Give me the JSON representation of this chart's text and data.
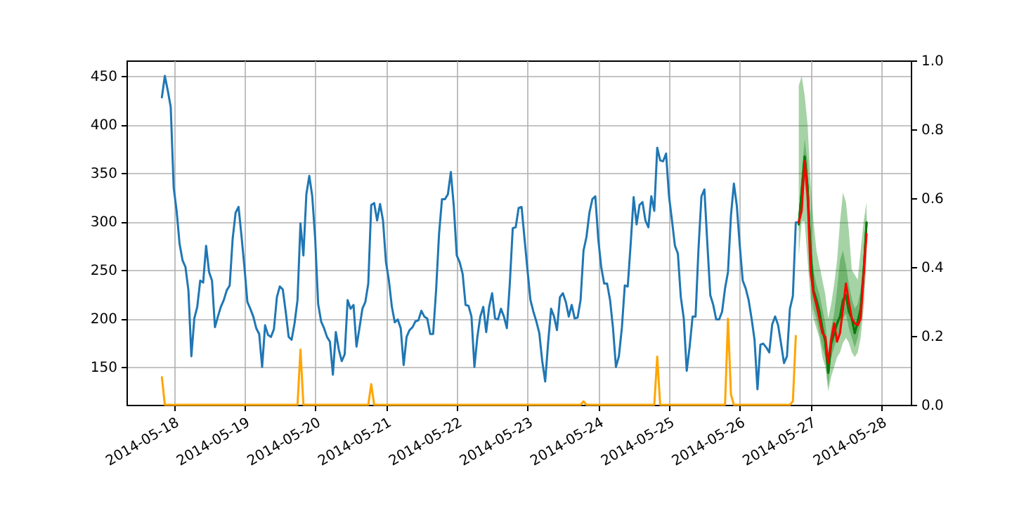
{
  "chart_data": {
    "type": "line",
    "grid": true,
    "xlim": [
      "2014-05-17T08:00",
      "2014-05-28T10:00"
    ],
    "xticks": [
      "2014-05-18",
      "2014-05-19",
      "2014-05-20",
      "2014-05-21",
      "2014-05-22",
      "2014-05-23",
      "2014-05-24",
      "2014-05-25",
      "2014-05-26",
      "2014-05-27",
      "2014-05-28"
    ],
    "ylim": [
      111,
      466
    ],
    "yticks": [
      150,
      200,
      250,
      300,
      350,
      400,
      450
    ],
    "y2lim": [
      0,
      1
    ],
    "y2ticks": [
      {
        "value": 0,
        "label": "0.0"
      },
      {
        "value": 0.2,
        "label": "0.2"
      },
      {
        "value": 0.4,
        "label": "0.4"
      },
      {
        "value": 0.6,
        "label": "0.6"
      },
      {
        "value": 0.8,
        "label": "0.8"
      },
      {
        "value": 1,
        "label": "1.0"
      }
    ],
    "series": [
      {
        "color": "#1f77b4",
        "x": [
          "2014-05-17T20:00",
          "2014-05-17T21:00",
          "2014-05-17T22:00",
          "2014-05-17T23:00",
          "2014-05-18T00:00",
          "2014-05-18T01:00",
          "2014-05-18T02:00",
          "2014-05-18T03:00",
          "2014-05-18T04:00",
          "2014-05-18T05:00",
          "2014-05-18T06:00",
          "2014-05-18T07:00",
          "2014-05-18T08:00",
          "2014-05-18T09:00",
          "2014-05-18T10:00",
          "2014-05-18T11:00",
          "2014-05-18T12:00",
          "2014-05-18T13:00",
          "2014-05-18T14:00",
          "2014-05-18T15:00",
          "2014-05-18T16:00",
          "2014-05-18T17:00",
          "2014-05-18T18:00",
          "2014-05-18T19:00",
          "2014-05-18T20:00",
          "2014-05-18T21:00",
          "2014-05-18T22:00",
          "2014-05-18T23:00",
          "2014-05-19T00:00",
          "2014-05-19T01:00",
          "2014-05-19T02:00",
          "2014-05-19T03:00",
          "2014-05-19T04:00",
          "2014-05-19T05:00",
          "2014-05-19T06:00",
          "2014-05-19T07:00",
          "2014-05-19T08:00",
          "2014-05-19T09:00",
          "2014-05-19T10:00",
          "2014-05-19T11:00",
          "2014-05-19T12:00",
          "2014-05-19T13:00",
          "2014-05-19T14:00",
          "2014-05-19T15:00",
          "2014-05-19T16:00",
          "2014-05-19T17:00",
          "2014-05-19T18:00",
          "2014-05-19T19:00",
          "2014-05-19T20:00",
          "2014-05-19T21:00",
          "2014-05-19T22:00",
          "2014-05-19T23:00",
          "2014-05-20T00:00",
          "2014-05-20T01:00",
          "2014-05-20T02:00",
          "2014-05-20T03:00",
          "2014-05-20T04:00",
          "2014-05-20T05:00",
          "2014-05-20T06:00",
          "2014-05-20T07:00",
          "2014-05-20T08:00",
          "2014-05-20T09:00",
          "2014-05-20T10:00",
          "2014-05-20T11:00",
          "2014-05-20T12:00",
          "2014-05-20T13:00",
          "2014-05-20T14:00",
          "2014-05-20T15:00",
          "2014-05-20T16:00",
          "2014-05-20T17:00",
          "2014-05-20T18:00",
          "2014-05-20T19:00",
          "2014-05-20T20:00",
          "2014-05-20T21:00",
          "2014-05-20T22:00",
          "2014-05-20T23:00",
          "2014-05-21T00:00",
          "2014-05-21T01:00",
          "2014-05-21T02:00",
          "2014-05-21T03:00",
          "2014-05-21T04:00",
          "2014-05-21T05:00",
          "2014-05-21T06:00",
          "2014-05-21T07:00",
          "2014-05-21T08:00",
          "2014-05-21T09:00",
          "2014-05-21T10:00",
          "2014-05-21T11:00",
          "2014-05-21T12:00",
          "2014-05-21T13:00",
          "2014-05-21T14:00",
          "2014-05-21T15:00",
          "2014-05-21T16:00",
          "2014-05-21T17:00",
          "2014-05-21T18:00",
          "2014-05-21T19:00",
          "2014-05-21T20:00",
          "2014-05-21T21:00",
          "2014-05-21T22:00",
          "2014-05-21T23:00",
          "2014-05-22T00:00",
          "2014-05-22T01:00",
          "2014-05-22T02:00",
          "2014-05-22T03:00",
          "2014-05-22T04:00",
          "2014-05-22T05:00",
          "2014-05-22T06:00",
          "2014-05-22T07:00",
          "2014-05-22T08:00",
          "2014-05-22T09:00",
          "2014-05-22T10:00",
          "2014-05-22T11:00",
          "2014-05-22T12:00",
          "2014-05-22T13:00",
          "2014-05-22T14:00",
          "2014-05-22T15:00",
          "2014-05-22T16:00",
          "2014-05-22T17:00",
          "2014-05-22T18:00",
          "2014-05-22T19:00",
          "2014-05-22T20:00",
          "2014-05-22T21:00",
          "2014-05-22T22:00",
          "2014-05-22T23:00",
          "2014-05-23T00:00",
          "2014-05-23T01:00",
          "2014-05-23T02:00",
          "2014-05-23T03:00",
          "2014-05-23T04:00",
          "2014-05-23T05:00",
          "2014-05-23T06:00",
          "2014-05-23T07:00",
          "2014-05-23T08:00",
          "2014-05-23T09:00",
          "2014-05-23T10:00",
          "2014-05-23T11:00",
          "2014-05-23T12:00",
          "2014-05-23T13:00",
          "2014-05-23T14:00",
          "2014-05-23T15:00",
          "2014-05-23T16:00",
          "2014-05-23T17:00",
          "2014-05-23T18:00",
          "2014-05-23T19:00",
          "2014-05-23T20:00",
          "2014-05-23T21:00",
          "2014-05-23T22:00",
          "2014-05-23T23:00",
          "2014-05-24T00:00",
          "2014-05-24T01:00",
          "2014-05-24T02:00",
          "2014-05-24T03:00",
          "2014-05-24T04:00",
          "2014-05-24T05:00",
          "2014-05-24T06:00",
          "2014-05-24T07:00",
          "2014-05-24T08:00",
          "2014-05-24T09:00",
          "2014-05-24T10:00",
          "2014-05-24T11:00",
          "2014-05-24T12:00",
          "2014-05-24T13:00",
          "2014-05-24T14:00",
          "2014-05-24T15:00",
          "2014-05-24T16:00",
          "2014-05-24T17:00",
          "2014-05-24T18:00",
          "2014-05-24T19:00",
          "2014-05-24T20:00",
          "2014-05-24T21:00",
          "2014-05-24T22:00",
          "2014-05-24T23:00",
          "2014-05-25T00:00",
          "2014-05-25T01:00",
          "2014-05-25T02:00",
          "2014-05-25T03:00",
          "2014-05-25T04:00",
          "2014-05-25T05:00",
          "2014-05-25T06:00",
          "2014-05-25T07:00",
          "2014-05-25T08:00",
          "2014-05-25T09:00",
          "2014-05-25T10:00",
          "2014-05-25T11:00",
          "2014-05-25T12:00",
          "2014-05-25T13:00",
          "2014-05-25T14:00",
          "2014-05-25T15:00",
          "2014-05-25T16:00",
          "2014-05-25T17:00",
          "2014-05-25T18:00",
          "2014-05-25T19:00",
          "2014-05-25T20:00",
          "2014-05-25T21:00",
          "2014-05-25T22:00",
          "2014-05-25T23:00",
          "2014-05-26T00:00",
          "2014-05-26T01:00",
          "2014-05-26T02:00",
          "2014-05-26T03:00",
          "2014-05-26T04:00",
          "2014-05-26T05:00",
          "2014-05-26T06:00",
          "2014-05-26T07:00",
          "2014-05-26T08:00",
          "2014-05-26T09:00",
          "2014-05-26T10:00",
          "2014-05-26T11:00",
          "2014-05-26T12:00",
          "2014-05-26T13:00",
          "2014-05-26T14:00",
          "2014-05-26T15:00",
          "2014-05-26T16:00",
          "2014-05-26T17:00",
          "2014-05-26T18:00",
          "2014-05-26T19:00",
          "2014-05-26T20:00"
        ],
        "values": [
          428,
          450,
          435,
          418,
          335,
          311,
          277,
          260,
          253,
          229,
          161,
          200,
          212,
          239,
          237,
          275,
          248,
          239,
          191,
          202,
          212,
          219,
          229,
          234,
          282,
          309,
          315,
          285,
          253,
          217,
          210,
          202,
          190,
          184,
          150,
          193,
          183,
          181,
          189,
          222,
          233,
          230,
          207,
          181,
          178,
          195,
          219,
          298,
          265,
          328,
          347,
          326,
          282,
          215,
          197,
          190,
          181,
          176,
          142,
          186,
          168,
          156,
          163,
          219,
          210,
          214,
          171,
          190,
          210,
          217,
          236,
          317,
          319,
          301,
          318,
          301,
          258,
          239,
          212,
          196,
          199,
          190,
          152,
          181,
          188,
          191,
          197,
          198,
          208,
          202,
          200,
          184,
          184,
          229,
          287,
          323,
          323,
          328,
          351,
          316,
          265,
          258,
          246,
          214,
          213,
          202,
          150,
          181,
          202,
          212,
          186,
          212,
          226,
          200,
          199,
          210,
          202,
          190,
          236,
          293,
          294,
          314,
          315,
          282,
          250,
          219,
          207,
          197,
          185,
          156,
          135,
          175,
          210,
          202,
          188,
          222,
          226,
          217,
          202,
          214,
          200,
          201,
          219,
          270,
          284,
          309,
          323,
          326,
          282,
          253,
          236,
          236,
          219,
          190,
          150,
          161,
          190,
          234,
          233,
          277,
          325,
          297,
          317,
          320,
          301,
          294,
          326,
          311,
          376,
          363,
          362,
          370,
          326,
          301,
          275,
          267,
          222,
          200,
          146,
          171,
          202,
          202,
          272,
          326,
          333,
          277,
          224,
          214,
          199,
          199,
          207,
          231,
          248,
          306,
          339,
          316,
          275,
          239,
          231,
          219,
          200,
          178,
          127,
          173,
          174,
          170,
          165,
          194,
          202,
          193,
          174,
          154,
          161,
          210,
          223,
          299,
          299
        ]
      },
      {
        "color": "#ffa500",
        "axis": "y2",
        "x": [
          "2014-05-17T20:00",
          "2014-05-17T21:00",
          "2014-05-19T18:00",
          "2014-05-19T19:00",
          "2014-05-19T20:00",
          "2014-05-20T18:00",
          "2014-05-20T19:00",
          "2014-05-20T20:00",
          "2014-05-23T18:00",
          "2014-05-23T19:00",
          "2014-05-23T20:00",
          "2014-05-24T19:00",
          "2014-05-24T20:00",
          "2014-05-24T21:00",
          "2014-05-25T19:00",
          "2014-05-25T20:00",
          "2014-05-25T21:00",
          "2014-05-25T22:00",
          "2014-05-26T17:00",
          "2014-05-26T18:00",
          "2014-05-26T19:00"
        ],
        "values": [
          0.08,
          0,
          0,
          0.16,
          0,
          0,
          0.06,
          0,
          0,
          0.01,
          0,
          0,
          0.14,
          0,
          0,
          0.25,
          0.03,
          0,
          0,
          0.01,
          0.2
        ]
      },
      {
        "color": "#008000",
        "x": [
          "2014-05-26T20:00",
          "2014-05-26T21:00",
          "2014-05-26T22:00",
          "2014-05-26T23:00",
          "2014-05-27T00:00",
          "2014-05-27T01:00",
          "2014-05-27T02:00",
          "2014-05-27T03:00",
          "2014-05-27T04:00",
          "2014-05-27T05:00",
          "2014-05-27T06:00",
          "2014-05-27T07:00",
          "2014-05-27T08:00",
          "2014-05-27T09:00",
          "2014-05-27T10:00",
          "2014-05-27T11:00",
          "2014-05-27T12:00",
          "2014-05-27T13:00",
          "2014-05-27T14:00",
          "2014-05-27T15:00",
          "2014-05-27T16:00",
          "2014-05-27T17:00",
          "2014-05-27T18:00",
          "2014-05-27T19:00"
        ],
        "values": [
          297,
          331,
          367,
          335,
          268,
          229,
          219,
          207,
          190,
          176,
          144,
          174,
          185,
          195,
          202,
          219,
          224,
          207,
          200,
          185,
          197,
          210,
          248,
          299
        ],
        "lower": [
          264,
          300,
          300,
          260,
          220,
          200,
          190,
          180,
          160,
          150,
          125,
          140,
          150,
          160,
          165,
          175,
          180,
          175,
          165,
          160,
          165,
          180,
          210,
          260
        ],
        "upper": [
          440,
          450,
          430,
          400,
          340,
          300,
          270,
          255,
          240,
          225,
          200,
          215,
          235,
          260,
          300,
          330,
          320,
          290,
          250,
          245,
          240,
          270,
          300,
          320
        ]
      },
      {
        "color": "#0b7a0b",
        "x": [
          "2014-05-26T20:00",
          "2014-05-26T21:00",
          "2014-05-26T22:00",
          "2014-05-26T23:00",
          "2014-05-27T00:00",
          "2014-05-27T01:00",
          "2014-05-27T02:00",
          "2014-05-27T03:00",
          "2014-05-27T04:00",
          "2014-05-27T05:00",
          "2014-05-27T06:00",
          "2014-05-27T07:00",
          "2014-05-27T08:00",
          "2014-05-27T09:00",
          "2014-05-27T10:00",
          "2014-05-27T11:00",
          "2014-05-27T12:00",
          "2014-05-27T13:00",
          "2014-05-27T14:00",
          "2014-05-27T15:00",
          "2014-05-27T16:00",
          "2014-05-27T17:00",
          "2014-05-27T18:00",
          "2014-05-27T19:00"
        ],
        "values": [
          297,
          331,
          367,
          335,
          268,
          229,
          219,
          207,
          190,
          176,
          144,
          174,
          185,
          195,
          202,
          219,
          224,
          207,
          200,
          185,
          197,
          210,
          248,
          299
        ],
        "lower": [
          290,
          310,
          345,
          310,
          245,
          210,
          200,
          185,
          170,
          160,
          130,
          160,
          170,
          180,
          185,
          200,
          205,
          190,
          180,
          170,
          180,
          195,
          230,
          285
        ],
        "upper": [
          305,
          350,
          385,
          360,
          290,
          250,
          235,
          225,
          210,
          195,
          165,
          190,
          205,
          230,
          260,
          270,
          255,
          235,
          220,
          210,
          215,
          230,
          265,
          310
        ]
      },
      {
        "color": "#ff0000",
        "x": [
          "2014-05-26T20:00",
          "2014-05-26T21:00",
          "2014-05-26T22:00",
          "2014-05-26T23:00",
          "2014-05-27T00:00",
          "2014-05-27T01:00",
          "2014-05-27T02:00",
          "2014-05-27T03:00",
          "2014-05-27T04:00",
          "2014-05-27T05:00",
          "2014-05-27T06:00",
          "2014-05-27T07:00",
          "2014-05-27T08:00",
          "2014-05-27T09:00",
          "2014-05-27T10:00",
          "2014-05-27T11:00",
          "2014-05-27T12:00",
          "2014-05-27T13:00",
          "2014-05-27T14:00",
          "2014-05-27T15:00",
          "2014-05-27T16:00",
          "2014-05-27T17:00",
          "2014-05-27T18:00",
          "2014-05-27T19:00"
        ],
        "values": [
          299,
          311,
          362,
          326,
          248,
          226,
          214,
          200,
          185,
          181,
          154,
          178,
          195,
          176,
          185,
          210,
          236,
          217,
          200,
          195,
          193,
          200,
          244,
          287
        ]
      }
    ]
  }
}
